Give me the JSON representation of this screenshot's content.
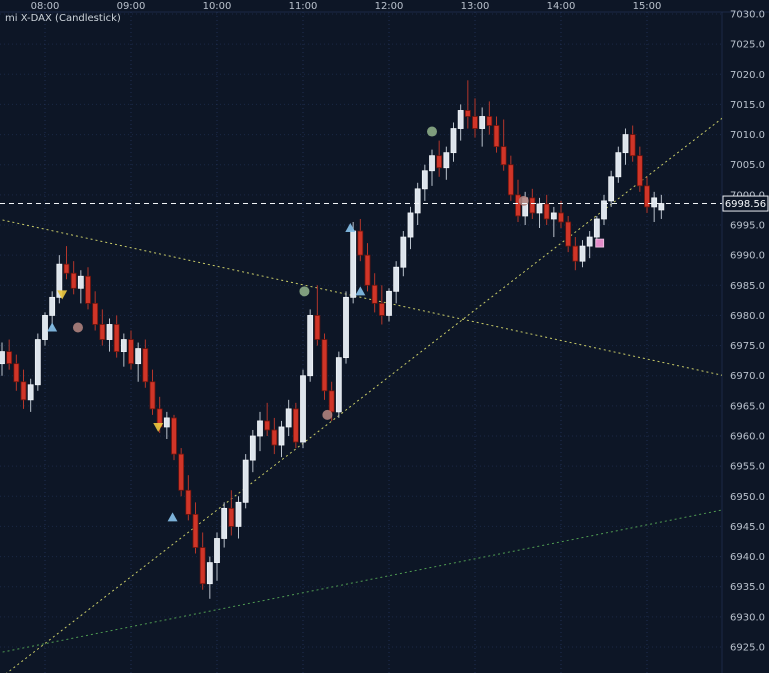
{
  "title": "mi X-DAX (Candlestick)",
  "current_price": {
    "value": "6998.56",
    "price": 6998.56
  },
  "axes": {
    "time_labels": [
      "08:00",
      "09:00",
      "10:00",
      "11:00",
      "12:00",
      "13:00",
      "14:00",
      "15:00"
    ],
    "price_max": 7030,
    "price_min": 6925,
    "price_step": 5,
    "price_labels": [
      "7030.0",
      "7025.0",
      "7020.0",
      "7015.0",
      "7010.0",
      "7005.0",
      "7000.0",
      "6995.0",
      "6990.0",
      "6985.0",
      "6980.0",
      "6975.0",
      "6970.0",
      "6965.0",
      "6960.0",
      "6955.0",
      "6950.0",
      "6945.0",
      "6940.0",
      "6935.0",
      "6930.0",
      "6925.0"
    ]
  },
  "colors": {
    "background": "#0d1626",
    "grid_v": "#24345a",
    "grid_h": "#1c2a49",
    "axis_text": "#b9c1cc",
    "candle_up": "#dde4ec",
    "candle_up_edge": "#f0f4f8",
    "wick_up": "#b9c2cc",
    "candle_down": "#d03528",
    "candle_down_edge": "#6f150d",
    "wick_down": "#b5362b",
    "price_line": "#f2f5f8",
    "trend_yellow": "#c9cc68",
    "trend_green": "#4f9b52",
    "marker_green": "#8fb08a",
    "marker_rose": "#b28480",
    "marker_blue": "#85c0e8",
    "marker_yellow": "#e9c63f",
    "marker_pink": "#ef93d2"
  },
  "chart_data": {
    "type": "candlestick",
    "title": "mi X-DAX (Candlestick)",
    "ylabel": "Price",
    "xlabel": "Time",
    "ylim": [
      6925,
      7030
    ],
    "grid": true,
    "legend_position": "none",
    "columns": [
      "time",
      "open",
      "high",
      "low",
      "close"
    ],
    "candles": [
      [
        "07:30",
        6972,
        6975.5,
        6970,
        6974
      ],
      [
        "07:35",
        6974,
        6976,
        6971,
        6972
      ],
      [
        "07:40",
        6972,
        6973.5,
        6967.5,
        6969
      ],
      [
        "07:45",
        6969,
        6971,
        6964.5,
        6966
      ],
      [
        "07:50",
        6966,
        6969.5,
        6964,
        6968.5
      ],
      [
        "07:55",
        6968.5,
        6977,
        6967.5,
        6976
      ],
      [
        "08:00",
        6976,
        6980.5,
        6975,
        6980
      ],
      [
        "08:05",
        6980,
        6984,
        6978,
        6983
      ],
      [
        "08:10",
        6983,
        6990,
        6982,
        6988.5
      ],
      [
        "08:15",
        6988.5,
        6991.5,
        6986,
        6987
      ],
      [
        "08:20",
        6987,
        6989,
        6983.5,
        6984.5
      ],
      [
        "08:25",
        6984.5,
        6987.5,
        6982,
        6986.5
      ],
      [
        "08:30",
        6986.5,
        6988,
        6981,
        6982
      ],
      [
        "08:35",
        6982,
        6984,
        6977.5,
        6978.5
      ],
      [
        "08:40",
        6978.5,
        6981,
        6975,
        6976
      ],
      [
        "08:45",
        6976,
        6979.5,
        6974,
        6978.5
      ],
      [
        "08:50",
        6978.5,
        6980,
        6973,
        6974
      ],
      [
        "08:55",
        6974,
        6977,
        6971.5,
        6976
      ],
      [
        "09:00",
        6976,
        6977.5,
        6971,
        6972
      ],
      [
        "09:05",
        6972,
        6975.5,
        6969,
        6974.5
      ],
      [
        "09:10",
        6974.5,
        6976,
        6968,
        6969
      ],
      [
        "09:15",
        6969,
        6971,
        6963.5,
        6964.5
      ],
      [
        "09:20",
        6964.5,
        6966.5,
        6960.5,
        6961.5
      ],
      [
        "09:25",
        6961.5,
        6964,
        6959.5,
        6963
      ],
      [
        "09:30",
        6963,
        6963.5,
        6956,
        6957
      ],
      [
        "09:35",
        6957,
        6958,
        6950,
        6951
      ],
      [
        "09:40",
        6951,
        6953.5,
        6946,
        6947
      ],
      [
        "09:45",
        6947,
        6949,
        6940.5,
        6941.5
      ],
      [
        "09:50",
        6941.5,
        6944,
        6934.5,
        6935.5
      ],
      [
        "09:55",
        6935.5,
        6940,
        6933,
        6939
      ],
      [
        "10:00",
        6939,
        6944,
        6936,
        6943
      ],
      [
        "10:05",
        6943,
        6949,
        6941.5,
        6948
      ],
      [
        "10:10",
        6948,
        6951,
        6943.5,
        6945
      ],
      [
        "10:15",
        6945,
        6950,
        6943,
        6949
      ],
      [
        "10:20",
        6949,
        6957,
        6948,
        6956
      ],
      [
        "10:25",
        6956,
        6961,
        6954,
        6960
      ],
      [
        "10:30",
        6960,
        6964,
        6957.5,
        6962.5
      ],
      [
        "10:35",
        6962.5,
        6965.5,
        6960,
        6961
      ],
      [
        "10:40",
        6961,
        6963,
        6957,
        6958.5
      ],
      [
        "10:45",
        6958.5,
        6962.5,
        6956.5,
        6961.5
      ],
      [
        "10:50",
        6961.5,
        6966,
        6960,
        6964.5
      ],
      [
        "10:55",
        6964.5,
        6965.5,
        6958,
        6959
      ],
      [
        "11:00",
        6959,
        6971,
        6958,
        6970
      ],
      [
        "11:05",
        6970,
        6981,
        6969,
        6980
      ],
      [
        "11:10",
        6980,
        6985,
        6975,
        6976
      ],
      [
        "11:15",
        6976,
        6977,
        6966,
        6967.5
      ],
      [
        "11:20",
        6967.5,
        6969,
        6962.5,
        6964
      ],
      [
        "11:25",
        6964,
        6974,
        6963,
        6973
      ],
      [
        "11:30",
        6973,
        6984,
        6972,
        6983
      ],
      [
        "11:35",
        6983,
        6995.5,
        6982,
        6994
      ],
      [
        "11:40",
        6994,
        6996,
        6989,
        6990
      ],
      [
        "11:45",
        6990,
        6992,
        6984,
        6985
      ],
      [
        "11:50",
        6985,
        6987,
        6980.5,
        6982
      ],
      [
        "11:55",
        6982,
        6985,
        6978.5,
        6980
      ],
      [
        "12:00",
        6980,
        6984.5,
        6979,
        6984
      ],
      [
        "12:05",
        6984,
        6989,
        6982,
        6988
      ],
      [
        "12:10",
        6988,
        6994,
        6986.5,
        6993
      ],
      [
        "12:15",
        6993,
        6998,
        6991,
        6997
      ],
      [
        "12:20",
        6997,
        7002,
        6995,
        7001
      ],
      [
        "12:25",
        7001,
        7005,
        6999,
        7004
      ],
      [
        "12:30",
        7004,
        7007.5,
        7001.5,
        7006.5
      ],
      [
        "12:35",
        7006.5,
        7009,
        7003,
        7004.5
      ],
      [
        "12:40",
        7004.5,
        7008,
        7002.5,
        7007
      ],
      [
        "12:45",
        7007,
        7012,
        7005.5,
        7011
      ],
      [
        "12:50",
        7011,
        7015,
        7009,
        7014
      ],
      [
        "12:55",
        7014,
        7019,
        7011,
        7013
      ],
      [
        "13:00",
        7013,
        7016,
        7009.5,
        7011
      ],
      [
        "13:05",
        7011,
        7014.5,
        7008,
        7013
      ],
      [
        "13:10",
        7013,
        7015.5,
        7010,
        7011.5
      ],
      [
        "13:15",
        7011.5,
        7013,
        7007,
        7008
      ],
      [
        "13:20",
        7008,
        7012.5,
        7004,
        7005
      ],
      [
        "13:25",
        7005,
        7006.5,
        6999,
        7000
      ],
      [
        "13:30",
        7000,
        7002.5,
        6995.5,
        6996.5
      ],
      [
        "13:35",
        6996.5,
        7000.5,
        6995,
        6999.5
      ],
      [
        "13:40",
        6999.5,
        7001,
        6996,
        6997
      ],
      [
        "13:45",
        6997,
        6999.5,
        6994.5,
        6998.5
      ],
      [
        "13:50",
        6998.5,
        7000,
        6995,
        6996
      ],
      [
        "13:55",
        6996,
        6998,
        6993,
        6997
      ],
      [
        "14:00",
        6997,
        6999,
        6994.5,
        6995.5
      ],
      [
        "14:05",
        6995.5,
        6996.5,
        6990.5,
        6991.5
      ],
      [
        "14:10",
        6991.5,
        6993,
        6987.5,
        6989
      ],
      [
        "14:15",
        6989,
        6992.5,
        6988,
        6991.5
      ],
      [
        "14:20",
        6991.5,
        6994,
        6989.5,
        6993
      ],
      [
        "14:25",
        6993,
        6996.5,
        6992,
        6996
      ],
      [
        "14:30",
        6996,
        7000,
        6995,
        6999
      ],
      [
        "14:35",
        6999,
        7004,
        6998,
        7003
      ],
      [
        "14:40",
        7003,
        7008,
        7002,
        7007
      ],
      [
        "14:45",
        7007,
        7011,
        7005,
        7010
      ],
      [
        "14:50",
        7010,
        7011.5,
        7005.5,
        7006.5
      ],
      [
        "14:55",
        7006.5,
        7008,
        7000.5,
        7001.5
      ],
      [
        "15:00",
        7001.5,
        7003,
        6997,
        6998
      ],
      [
        "15:05",
        6998,
        7000.5,
        6995.5,
        6999.5
      ],
      [
        "15:10",
        6997.5,
        7000,
        6996,
        6998.56
      ]
    ],
    "markers": [
      {
        "shape": "triangle-down",
        "color": "#e9c63f",
        "time": "08:12",
        "price": 6983.5
      },
      {
        "shape": "triangle-up",
        "color": "#85c0e8",
        "time": "08:05",
        "price": 6978
      },
      {
        "shape": "circle",
        "color": "#b28480",
        "time": "08:23",
        "price": 6978
      },
      {
        "shape": "triangle-down",
        "color": "#e9c63f",
        "time": "09:19",
        "price": 6961.5
      },
      {
        "shape": "triangle-up",
        "color": "#85c0e8",
        "time": "09:29",
        "price": 6946.5
      },
      {
        "shape": "circle",
        "color": "#8fb08a",
        "time": "11:01",
        "price": 6984
      },
      {
        "shape": "circle",
        "color": "#b28480",
        "time": "11:17",
        "price": 6963.5
      },
      {
        "shape": "triangle-up",
        "color": "#85c0e8",
        "time": "11:33",
        "price": 6994.5
      },
      {
        "shape": "triangle-up",
        "color": "#85c0e8",
        "time": "11:40",
        "price": 6984
      },
      {
        "shape": "circle",
        "color": "#8fb08a",
        "time": "12:30",
        "price": 7010.5
      },
      {
        "shape": "circle",
        "color": "#b28480",
        "time": "13:34",
        "price": 6999
      },
      {
        "shape": "square",
        "color": "#ef93d2",
        "time": "14:27",
        "price": 6992
      }
    ],
    "trendlines": [
      {
        "name": "descending-resistance",
        "color": "#c9cc68",
        "from": {
          "time": "07:27",
          "price": 6996
        },
        "to": {
          "time": "15:54",
          "price": 6970
        }
      },
      {
        "name": "ascending-support-steep",
        "color": "#c9cc68",
        "from": {
          "time": "07:27",
          "price": 6919.5
        },
        "to": {
          "time": "15:54",
          "price": 7013
        }
      },
      {
        "name": "ascending-support-shallow",
        "color": "#4f9b52",
        "from": {
          "time": "07:27",
          "price": 6924
        },
        "to": {
          "time": "15:54",
          "price": 6947.8
        }
      }
    ],
    "current_price_line": 6998.56
  }
}
